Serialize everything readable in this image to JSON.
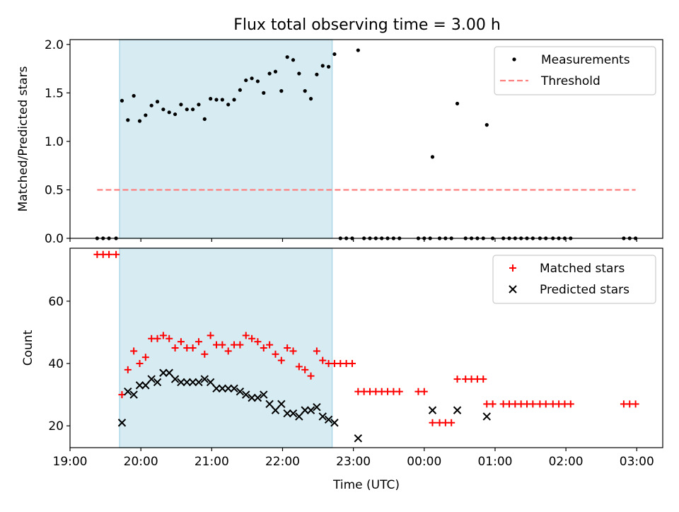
{
  "figure": {
    "title": "Flux total observing time = 3.00 h"
  },
  "chart_data": [
    {
      "type": "scatter",
      "panel": "top",
      "title": "Flux total observing time = 3.00 h",
      "xlabel": "",
      "ylabel": "Matched/Predicted stars",
      "xlim": [
        "19:00",
        "03:22"
      ],
      "ylim": [
        0,
        2.05
      ],
      "yticks": [
        0.0,
        0.5,
        1.0,
        1.5,
        2.0
      ],
      "ytick_labels": [
        "0.0",
        "0.5",
        "1.0",
        "1.5",
        "2.0"
      ],
      "highlight_span": [
        "19:42",
        "22:42"
      ],
      "highlight_color": "#add8e6",
      "legend_position": "upper right",
      "series": [
        {
          "name": "Measurements",
          "marker": "dot",
          "color": "#000000",
          "points": [
            [
              "19:23",
              0.0
            ],
            [
              "19:28",
              0.0
            ],
            [
              "19:33",
              0.0
            ],
            [
              "19:39",
              0.0
            ],
            [
              "19:44",
              1.42
            ],
            [
              "19:49",
              1.22
            ],
            [
              "19:54",
              1.47
            ],
            [
              "19:59",
              1.21
            ],
            [
              "20:04",
              1.27
            ],
            [
              "20:09",
              1.37
            ],
            [
              "20:14",
              1.41
            ],
            [
              "20:19",
              1.33
            ],
            [
              "20:24",
              1.3
            ],
            [
              "20:29",
              1.28
            ],
            [
              "20:34",
              1.38
            ],
            [
              "20:39",
              1.33
            ],
            [
              "20:44",
              1.33
            ],
            [
              "20:49",
              1.38
            ],
            [
              "20:54",
              1.23
            ],
            [
              "20:59",
              1.44
            ],
            [
              "21:04",
              1.43
            ],
            [
              "21:09",
              1.43
            ],
            [
              "21:14",
              1.38
            ],
            [
              "21:19",
              1.43
            ],
            [
              "21:24",
              1.53
            ],
            [
              "21:29",
              1.63
            ],
            [
              "21:34",
              1.65
            ],
            [
              "21:39",
              1.62
            ],
            [
              "21:44",
              1.5
            ],
            [
              "21:49",
              1.7
            ],
            [
              "21:54",
              1.72
            ],
            [
              "21:59",
              1.52
            ],
            [
              "22:04",
              1.87
            ],
            [
              "22:09",
              1.84
            ],
            [
              "22:14",
              1.7
            ],
            [
              "22:19",
              1.52
            ],
            [
              "22:24",
              1.44
            ],
            [
              "22:29",
              1.69
            ],
            [
              "22:34",
              1.78
            ],
            [
              "22:39",
              1.77
            ],
            [
              "22:44",
              1.9
            ],
            [
              "22:49",
              0.0
            ],
            [
              "22:54",
              0.0
            ],
            [
              "22:59",
              0.0
            ],
            [
              "23:04",
              1.94
            ],
            [
              "23:09",
              0.0
            ],
            [
              "23:14",
              0.0
            ],
            [
              "23:19",
              0.0
            ],
            [
              "23:24",
              0.0
            ],
            [
              "23:29",
              0.0
            ],
            [
              "23:34",
              0.0
            ],
            [
              "23:39",
              0.0
            ],
            [
              "23:55",
              0.0
            ],
            [
              "00:00",
              0.0
            ],
            [
              "00:05",
              0.0
            ],
            [
              "00:07",
              0.84
            ],
            [
              "00:13",
              0.0
            ],
            [
              "00:18",
              0.0
            ],
            [
              "00:23",
              0.0
            ],
            [
              "00:28",
              1.39
            ],
            [
              "00:35",
              0.0
            ],
            [
              "00:40",
              0.0
            ],
            [
              "00:45",
              0.0
            ],
            [
              "00:50",
              0.0
            ],
            [
              "00:53",
              1.17
            ],
            [
              "00:58",
              0.0
            ],
            [
              "01:07",
              0.0
            ],
            [
              "01:12",
              0.0
            ],
            [
              "01:17",
              0.0
            ],
            [
              "01:22",
              0.0
            ],
            [
              "01:27",
              0.0
            ],
            [
              "01:32",
              0.0
            ],
            [
              "01:38",
              0.0
            ],
            [
              "01:43",
              0.0
            ],
            [
              "01:49",
              0.0
            ],
            [
              "01:54",
              0.0
            ],
            [
              "01:59",
              0.0
            ],
            [
              "02:04",
              0.0
            ],
            [
              "02:49",
              0.0
            ],
            [
              "02:54",
              0.0
            ],
            [
              "02:59",
              0.0
            ]
          ]
        },
        {
          "name": "Threshold",
          "marker": "dashed-line",
          "color": "#ff7f7f",
          "points": [
            [
              "19:23",
              0.5
            ],
            [
              "02:59",
              0.5
            ]
          ]
        }
      ]
    },
    {
      "type": "scatter",
      "panel": "bottom",
      "xlabel": "Time (UTC)",
      "ylabel": "Count",
      "xlim": [
        "19:00",
        "03:22"
      ],
      "ylim": [
        13,
        77
      ],
      "yticks": [
        20,
        40,
        60
      ],
      "ytick_labels": [
        "20",
        "40",
        "60"
      ],
      "xticks": [
        "19:00",
        "20:00",
        "21:00",
        "22:00",
        "23:00",
        "00:00",
        "01:00",
        "02:00",
        "03:00"
      ],
      "xtick_labels": [
        "19:00",
        "20:00",
        "21:00",
        "22:00",
        "23:00",
        "00:00",
        "01:00",
        "02:00",
        "03:00"
      ],
      "highlight_span": [
        "19:42",
        "22:42"
      ],
      "highlight_color": "#add8e6",
      "legend_position": "upper right",
      "series": [
        {
          "name": "Matched stars",
          "marker": "plus",
          "color": "#ff0000",
          "points": [
            [
              "19:23",
              75
            ],
            [
              "19:28",
              75
            ],
            [
              "19:33",
              75
            ],
            [
              "19:39",
              75
            ],
            [
              "19:44",
              30
            ],
            [
              "19:49",
              38
            ],
            [
              "19:54",
              44
            ],
            [
              "19:59",
              40
            ],
            [
              "20:04",
              42
            ],
            [
              "20:09",
              48
            ],
            [
              "20:14",
              48
            ],
            [
              "20:19",
              49
            ],
            [
              "20:24",
              48
            ],
            [
              "20:29",
              45
            ],
            [
              "20:34",
              47
            ],
            [
              "20:39",
              45
            ],
            [
              "20:44",
              45
            ],
            [
              "20:49",
              47
            ],
            [
              "20:54",
              43
            ],
            [
              "20:59",
              49
            ],
            [
              "21:04",
              46
            ],
            [
              "21:09",
              46
            ],
            [
              "21:14",
              44
            ],
            [
              "21:19",
              46
            ],
            [
              "21:24",
              46
            ],
            [
              "21:29",
              49
            ],
            [
              "21:34",
              48
            ],
            [
              "21:39",
              47
            ],
            [
              "21:44",
              45
            ],
            [
              "21:49",
              46
            ],
            [
              "21:54",
              43
            ],
            [
              "21:59",
              41
            ],
            [
              "22:04",
              45
            ],
            [
              "22:09",
              44
            ],
            [
              "22:14",
              39
            ],
            [
              "22:19",
              38
            ],
            [
              "22:24",
              36
            ],
            [
              "22:29",
              44
            ],
            [
              "22:34",
              41
            ],
            [
              "22:39",
              40
            ],
            [
              "22:44",
              40
            ],
            [
              "22:49",
              40
            ],
            [
              "22:54",
              40
            ],
            [
              "22:59",
              40
            ],
            [
              "23:04",
              31
            ],
            [
              "23:09",
              31
            ],
            [
              "23:14",
              31
            ],
            [
              "23:19",
              31
            ],
            [
              "23:24",
              31
            ],
            [
              "23:29",
              31
            ],
            [
              "23:34",
              31
            ],
            [
              "23:39",
              31
            ],
            [
              "23:55",
              31
            ],
            [
              "00:00",
              31
            ],
            [
              "00:07",
              21
            ],
            [
              "00:13",
              21
            ],
            [
              "00:18",
              21
            ],
            [
              "00:23",
              21
            ],
            [
              "00:28",
              35
            ],
            [
              "00:35",
              35
            ],
            [
              "00:40",
              35
            ],
            [
              "00:45",
              35
            ],
            [
              "00:50",
              35
            ],
            [
              "00:53",
              27
            ],
            [
              "00:58",
              27
            ],
            [
              "01:07",
              27
            ],
            [
              "01:12",
              27
            ],
            [
              "01:17",
              27
            ],
            [
              "01:22",
              27
            ],
            [
              "01:27",
              27
            ],
            [
              "01:32",
              27
            ],
            [
              "01:38",
              27
            ],
            [
              "01:43",
              27
            ],
            [
              "01:49",
              27
            ],
            [
              "01:54",
              27
            ],
            [
              "01:59",
              27
            ],
            [
              "02:04",
              27
            ],
            [
              "02:49",
              27
            ],
            [
              "02:54",
              27
            ],
            [
              "02:59",
              27
            ]
          ]
        },
        {
          "name": "Predicted stars",
          "marker": "x",
          "color": "#000000",
          "points": [
            [
              "19:44",
              21
            ],
            [
              "19:49",
              31
            ],
            [
              "19:54",
              30
            ],
            [
              "19:59",
              33
            ],
            [
              "20:04",
              33
            ],
            [
              "20:09",
              35
            ],
            [
              "20:14",
              34
            ],
            [
              "20:19",
              37
            ],
            [
              "20:24",
              37
            ],
            [
              "20:29",
              35
            ],
            [
              "20:34",
              34
            ],
            [
              "20:39",
              34
            ],
            [
              "20:44",
              34
            ],
            [
              "20:49",
              34
            ],
            [
              "20:54",
              35
            ],
            [
              "20:59",
              34
            ],
            [
              "21:04",
              32
            ],
            [
              "21:09",
              32
            ],
            [
              "21:14",
              32
            ],
            [
              "21:19",
              32
            ],
            [
              "21:24",
              31
            ],
            [
              "21:29",
              30
            ],
            [
              "21:34",
              29
            ],
            [
              "21:39",
              29
            ],
            [
              "21:44",
              30
            ],
            [
              "21:49",
              27
            ],
            [
              "21:54",
              25
            ],
            [
              "21:59",
              27
            ],
            [
              "22:04",
              24
            ],
            [
              "22:09",
              24
            ],
            [
              "22:14",
              23
            ],
            [
              "22:19",
              25
            ],
            [
              "22:24",
              25
            ],
            [
              "22:29",
              26
            ],
            [
              "22:34",
              23
            ],
            [
              "22:39",
              22
            ],
            [
              "22:44",
              21
            ],
            [
              "23:04",
              16
            ],
            [
              "00:07",
              25
            ],
            [
              "00:28",
              25
            ],
            [
              "00:53",
              23
            ]
          ]
        }
      ]
    }
  ]
}
